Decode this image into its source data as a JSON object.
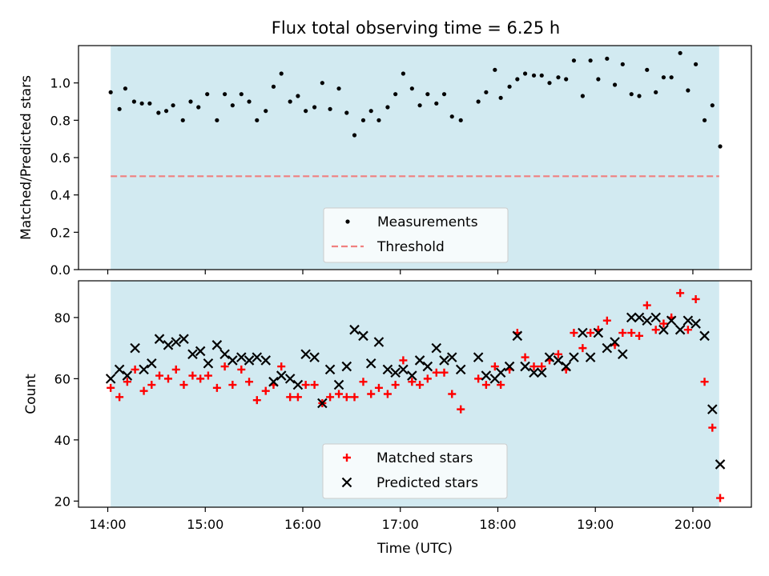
{
  "title": "Flux total observing time = 6.25 h",
  "colors": {
    "band": "#add8e6",
    "measurement": "#000000",
    "threshold": "#f08080",
    "matched": "#ff0000",
    "predicted": "#000000"
  },
  "chart_data": [
    {
      "type": "scatter",
      "ylabel": "Matched/Predicted stars",
      "ylim": [
        0,
        1.2
      ],
      "yticks": [
        0.0,
        0.2,
        0.4,
        0.6,
        0.8,
        1.0
      ],
      "ytick_labels": [
        "0.0",
        "0.2",
        "0.4",
        "0.6",
        "0.8",
        "1.0"
      ],
      "xlim": [
        13.7,
        20.6
      ],
      "xticks": [
        14,
        15,
        16,
        17,
        18,
        19,
        20
      ],
      "xtick_labels": [
        "",
        "",
        "",
        "",
        "",
        "",
        ""
      ],
      "band": [
        14.03,
        20.27
      ],
      "threshold": {
        "value": 0.5,
        "x0": 14.03,
        "x1": 20.27
      },
      "legend": {
        "placement": "lower center",
        "entries": [
          "Measurements",
          "Threshold"
        ]
      },
      "series": [
        {
          "name": "Measurements",
          "marker": "dot",
          "points": [
            [
              14.03,
              0.95
            ],
            [
              14.12,
              0.86
            ],
            [
              14.18,
              0.97
            ],
            [
              14.27,
              0.9
            ],
            [
              14.35,
              0.89
            ],
            [
              14.43,
              0.89
            ],
            [
              14.52,
              0.84
            ],
            [
              14.6,
              0.85
            ],
            [
              14.67,
              0.88
            ],
            [
              14.77,
              0.8
            ],
            [
              14.85,
              0.9
            ],
            [
              14.93,
              0.87
            ],
            [
              15.02,
              0.94
            ],
            [
              15.12,
              0.8
            ],
            [
              15.2,
              0.94
            ],
            [
              15.28,
              0.88
            ],
            [
              15.37,
              0.94
            ],
            [
              15.45,
              0.9
            ],
            [
              15.53,
              0.8
            ],
            [
              15.62,
              0.85
            ],
            [
              15.7,
              0.98
            ],
            [
              15.78,
              1.05
            ],
            [
              15.87,
              0.9
            ],
            [
              15.95,
              0.93
            ],
            [
              16.03,
              0.85
            ],
            [
              16.12,
              0.87
            ],
            [
              16.2,
              1.0
            ],
            [
              16.28,
              0.86
            ],
            [
              16.37,
              0.97
            ],
            [
              16.45,
              0.84
            ],
            [
              16.53,
              0.72
            ],
            [
              16.62,
              0.8
            ],
            [
              16.7,
              0.85
            ],
            [
              16.78,
              0.8
            ],
            [
              16.87,
              0.87
            ],
            [
              16.95,
              0.94
            ],
            [
              17.03,
              1.05
            ],
            [
              17.12,
              0.97
            ],
            [
              17.2,
              0.88
            ],
            [
              17.28,
              0.94
            ],
            [
              17.37,
              0.89
            ],
            [
              17.45,
              0.94
            ],
            [
              17.53,
              0.82
            ],
            [
              17.62,
              0.8
            ],
            [
              17.8,
              0.9
            ],
            [
              17.88,
              0.95
            ],
            [
              17.97,
              1.07
            ],
            [
              18.03,
              0.92
            ],
            [
              18.12,
              0.98
            ],
            [
              18.2,
              1.02
            ],
            [
              18.28,
              1.05
            ],
            [
              18.37,
              1.04
            ],
            [
              18.45,
              1.04
            ],
            [
              18.53,
              1.0
            ],
            [
              18.62,
              1.03
            ],
            [
              18.7,
              1.02
            ],
            [
              18.78,
              1.12
            ],
            [
              18.87,
              0.93
            ],
            [
              18.95,
              1.12
            ],
            [
              19.03,
              1.02
            ],
            [
              19.12,
              1.13
            ],
            [
              19.2,
              0.99
            ],
            [
              19.28,
              1.1
            ],
            [
              19.37,
              0.94
            ],
            [
              19.45,
              0.93
            ],
            [
              19.53,
              1.07
            ],
            [
              19.62,
              0.95
            ],
            [
              19.7,
              1.03
            ],
            [
              19.78,
              1.03
            ],
            [
              19.87,
              1.16
            ],
            [
              19.95,
              0.96
            ],
            [
              20.03,
              1.1
            ],
            [
              20.12,
              0.8
            ],
            [
              20.2,
              0.88
            ],
            [
              20.28,
              0.66
            ]
          ]
        }
      ]
    },
    {
      "type": "scatter",
      "xlabel": "Time (UTC)",
      "ylabel": "Count",
      "ylim": [
        18,
        92
      ],
      "yticks": [
        20,
        40,
        60,
        80
      ],
      "ytick_labels": [
        "20",
        "40",
        "60",
        "80"
      ],
      "xlim": [
        13.7,
        20.6
      ],
      "xticks": [
        14,
        15,
        16,
        17,
        18,
        19,
        20
      ],
      "xtick_labels": [
        "14:00",
        "15:00",
        "16:00",
        "17:00",
        "18:00",
        "19:00",
        "20:00"
      ],
      "band": [
        14.03,
        20.27
      ],
      "legend": {
        "placement": "lower center",
        "entries": [
          "Matched stars",
          "Predicted stars"
        ]
      },
      "series": [
        {
          "name": "Matched stars",
          "marker": "plus",
          "points": [
            [
              14.03,
              57
            ],
            [
              14.12,
              54
            ],
            [
              14.2,
              59
            ],
            [
              14.28,
              63
            ],
            [
              14.37,
              56
            ],
            [
              14.45,
              58
            ],
            [
              14.53,
              61
            ],
            [
              14.62,
              60
            ],
            [
              14.7,
              63
            ],
            [
              14.78,
              58
            ],
            [
              14.87,
              61
            ],
            [
              14.95,
              60
            ],
            [
              15.03,
              61
            ],
            [
              15.12,
              57
            ],
            [
              15.2,
              64
            ],
            [
              15.28,
              58
            ],
            [
              15.37,
              63
            ],
            [
              15.45,
              59
            ],
            [
              15.53,
              53
            ],
            [
              15.62,
              56
            ],
            [
              15.7,
              58
            ],
            [
              15.78,
              64
            ],
            [
              15.87,
              54
            ],
            [
              15.95,
              54
            ],
            [
              16.03,
              58
            ],
            [
              16.12,
              58
            ],
            [
              16.2,
              52
            ],
            [
              16.28,
              54
            ],
            [
              16.37,
              55
            ],
            [
              16.45,
              54
            ],
            [
              16.53,
              54
            ],
            [
              16.62,
              59
            ],
            [
              16.7,
              55
            ],
            [
              16.78,
              57
            ],
            [
              16.87,
              55
            ],
            [
              16.95,
              58
            ],
            [
              17.03,
              66
            ],
            [
              17.12,
              59
            ],
            [
              17.2,
              58
            ],
            [
              17.28,
              60
            ],
            [
              17.37,
              62
            ],
            [
              17.45,
              62
            ],
            [
              17.53,
              55
            ],
            [
              17.62,
              50
            ],
            [
              17.8,
              60
            ],
            [
              17.88,
              58
            ],
            [
              17.97,
              64
            ],
            [
              18.03,
              58
            ],
            [
              18.12,
              63
            ],
            [
              18.2,
              75
            ],
            [
              18.28,
              67
            ],
            [
              18.37,
              64
            ],
            [
              18.45,
              64
            ],
            [
              18.53,
              66
            ],
            [
              18.62,
              68
            ],
            [
              18.7,
              63
            ],
            [
              18.78,
              75
            ],
            [
              18.87,
              70
            ],
            [
              18.95,
              75
            ],
            [
              19.03,
              76
            ],
            [
              19.12,
              79
            ],
            [
              19.2,
              71
            ],
            [
              19.28,
              75
            ],
            [
              19.37,
              75
            ],
            [
              19.45,
              74
            ],
            [
              19.53,
              84
            ],
            [
              19.62,
              76
            ],
            [
              19.7,
              78
            ],
            [
              19.78,
              80
            ],
            [
              19.87,
              88
            ],
            [
              19.95,
              76
            ],
            [
              20.03,
              86
            ],
            [
              20.12,
              59
            ],
            [
              20.2,
              44
            ],
            [
              20.28,
              21
            ]
          ]
        },
        {
          "name": "Predicted stars",
          "marker": "x",
          "points": [
            [
              14.03,
              60
            ],
            [
              14.12,
              63
            ],
            [
              14.2,
              61
            ],
            [
              14.28,
              70
            ],
            [
              14.37,
              63
            ],
            [
              14.45,
              65
            ],
            [
              14.53,
              73
            ],
            [
              14.62,
              71
            ],
            [
              14.7,
              72
            ],
            [
              14.78,
              73
            ],
            [
              14.87,
              68
            ],
            [
              14.95,
              69
            ],
            [
              15.03,
              65
            ],
            [
              15.12,
              71
            ],
            [
              15.2,
              68
            ],
            [
              15.28,
              66
            ],
            [
              15.37,
              67
            ],
            [
              15.45,
              66
            ],
            [
              15.53,
              67
            ],
            [
              15.62,
              66
            ],
            [
              15.7,
              59
            ],
            [
              15.78,
              61
            ],
            [
              15.87,
              60
            ],
            [
              15.95,
              58
            ],
            [
              16.03,
              68
            ],
            [
              16.12,
              67
            ],
            [
              16.2,
              52
            ],
            [
              16.28,
              63
            ],
            [
              16.37,
              58
            ],
            [
              16.45,
              64
            ],
            [
              16.53,
              76
            ],
            [
              16.62,
              74
            ],
            [
              16.7,
              65
            ],
            [
              16.78,
              72
            ],
            [
              16.87,
              63
            ],
            [
              16.95,
              62
            ],
            [
              17.03,
              63
            ],
            [
              17.12,
              61
            ],
            [
              17.2,
              66
            ],
            [
              17.28,
              64
            ],
            [
              17.37,
              70
            ],
            [
              17.45,
              66
            ],
            [
              17.53,
              67
            ],
            [
              17.62,
              63
            ],
            [
              17.8,
              67
            ],
            [
              17.88,
              61
            ],
            [
              17.97,
              60
            ],
            [
              18.03,
              62
            ],
            [
              18.12,
              64
            ],
            [
              18.2,
              74
            ],
            [
              18.28,
              64
            ],
            [
              18.37,
              62
            ],
            [
              18.45,
              62
            ],
            [
              18.53,
              67
            ],
            [
              18.62,
              66
            ],
            [
              18.7,
              64
            ],
            [
              18.78,
              67
            ],
            [
              18.87,
              75
            ],
            [
              18.95,
              67
            ],
            [
              19.03,
              75
            ],
            [
              19.12,
              70
            ],
            [
              19.2,
              72
            ],
            [
              19.28,
              68
            ],
            [
              19.37,
              80
            ],
            [
              19.45,
              80
            ],
            [
              19.53,
              79
            ],
            [
              19.62,
              80
            ],
            [
              19.7,
              76
            ],
            [
              19.78,
              79
            ],
            [
              19.87,
              76
            ],
            [
              19.95,
              79
            ],
            [
              20.03,
              78
            ],
            [
              20.12,
              74
            ],
            [
              20.2,
              50
            ],
            [
              20.28,
              32
            ]
          ]
        }
      ]
    }
  ]
}
